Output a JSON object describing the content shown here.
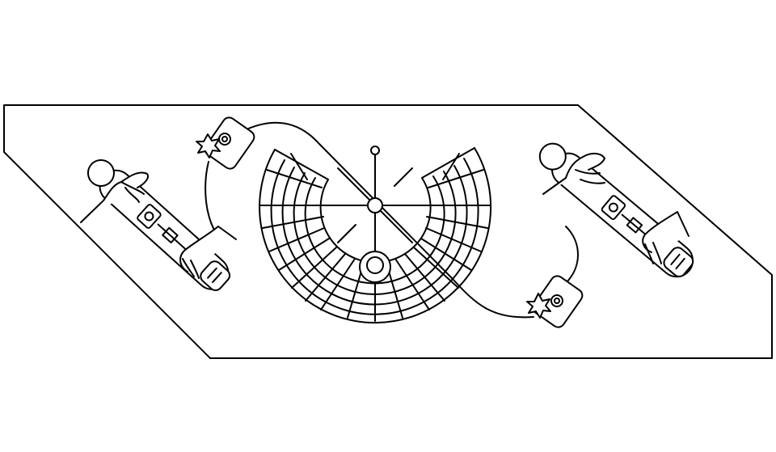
{
  "illustration": {
    "ink_color": "#000000",
    "background_color": "#ffffff",
    "elements": {
      "frame": "parallelogram-frame",
      "dial": "radial-grid-dial",
      "devices": [
        "handheld-controller-left",
        "handheld-controller-right"
      ],
      "modules": [
        "starburst-module-top",
        "starburst-module-bottom"
      ],
      "cable": "connecting-cable"
    }
  }
}
